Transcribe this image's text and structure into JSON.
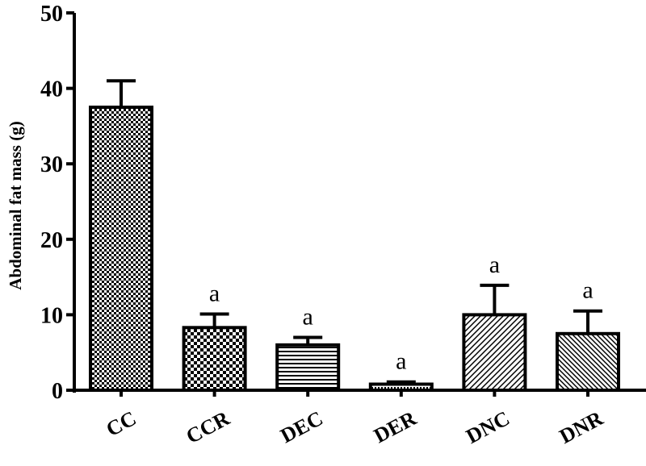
{
  "chart_data": {
    "type": "bar",
    "categories": [
      "CC",
      "CCR",
      "DEC",
      "DER",
      "DNC",
      "DNR"
    ],
    "values": [
      37.5,
      8.3,
      6.0,
      0.8,
      10.0,
      7.5
    ],
    "errors": [
      3.5,
      1.8,
      1.0,
      0.3,
      3.9,
      3.0
    ],
    "annotations": [
      "",
      "a",
      "a",
      "a",
      "a",
      "a"
    ],
    "patterns": [
      "checker-fine",
      "checker-coarse",
      "horizontal",
      "dots",
      "diagonal",
      "diagonal-dense"
    ],
    "ylabel": "Abdominal fat mass (g)",
    "xlabel": "",
    "title": "",
    "ylim": [
      0,
      50
    ],
    "yticks": [
      "0",
      "10",
      "20",
      "30",
      "40",
      "50"
    ],
    "grid": false,
    "bar_color": "#ffffff",
    "stroke_color": "#000000"
  }
}
